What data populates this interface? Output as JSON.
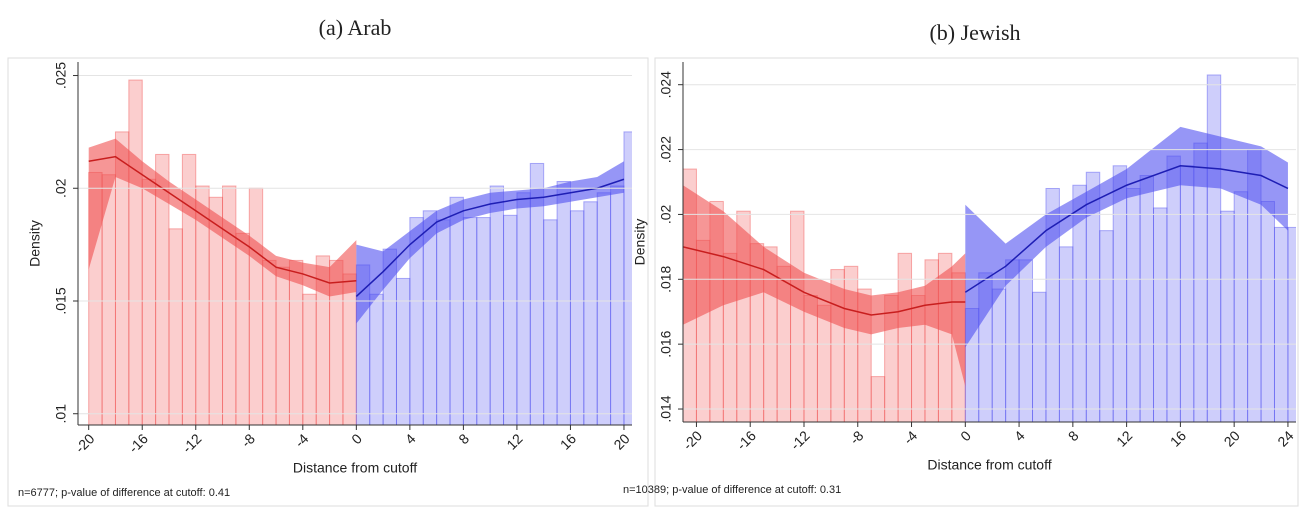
{
  "chart_data": [
    {
      "type": "histogram",
      "title": "(a) Arab",
      "xlabel": "Distance from cutoff",
      "ylabel": "Density",
      "note": "n=6777; p-value of difference at cutoff: 0.41",
      "grid": true,
      "xlim": [
        -20.8,
        20.6
      ],
      "ylim": [
        0.0095,
        0.0256
      ],
      "xticks": [
        -20,
        -16,
        -12,
        -8,
        -4,
        0,
        4,
        8,
        12,
        16,
        20
      ],
      "yticks": [
        {
          "value": 0.01,
          "label": ".01"
        },
        {
          "value": 0.015,
          "label": ".015"
        },
        {
          "value": 0.02,
          "label": ".02"
        },
        {
          "value": 0.025,
          "label": ".025"
        }
      ],
      "series": [
        {
          "color": "#f05050",
          "bins": [
            -20,
            -19,
            -18,
            -17,
            -16,
            -15,
            -14,
            -13,
            -12,
            -11,
            -10,
            -9,
            -8,
            -7,
            -6,
            -5,
            -4,
            -3,
            -2,
            -1,
            0
          ],
          "values": [
            0.0207,
            0.0206,
            0.0225,
            0.0248,
            0.0204,
            0.0215,
            0.0182,
            0.0215,
            0.0201,
            0.0196,
            0.0201,
            0.018,
            0.02,
            0.0168,
            0.0165,
            0.0168,
            0.0153,
            0.017,
            0.0168,
            0.0162
          ],
          "fit": {
            "x": [
              -20,
              -18,
              -16,
              -14,
              -12,
              -10,
              -8,
              -6,
              -4,
              -2,
              0
            ],
            "y": [
              0.0212,
              0.0214,
              0.0206,
              0.0198,
              0.019,
              0.0182,
              0.0174,
              0.0165,
              0.0162,
              0.0158,
              0.0159
            ],
            "lower": [
              0.0164,
              0.0205,
              0.02,
              0.0193,
              0.0186,
              0.0178,
              0.017,
              0.0161,
              0.0157,
              0.0152,
              0.0154
            ],
            "upper": [
              0.0218,
              0.0222,
              0.0212,
              0.0203,
              0.0195,
              0.0187,
              0.0179,
              0.017,
              0.0167,
              0.0165,
              0.0177
            ]
          }
        },
        {
          "color": "#5050f0",
          "bins": [
            0,
            1,
            2,
            3,
            4,
            5,
            6,
            7,
            8,
            9,
            10,
            11,
            12,
            13,
            14,
            15,
            16,
            17,
            18,
            19,
            20,
            21
          ],
          "values": [
            0.0166,
            0.0153,
            0.0173,
            0.016,
            0.0187,
            0.019,
            0.0186,
            0.0196,
            0.0187,
            0.0187,
            0.0201,
            0.0188,
            0.0198,
            0.0211,
            0.0186,
            0.0203,
            0.019,
            0.0194,
            0.0198,
            0.0201,
            0.0225
          ],
          "fit": {
            "x": [
              0,
              2,
              4,
              6,
              8,
              10,
              12,
              14,
              16,
              18,
              20
            ],
            "y": [
              0.0152,
              0.0163,
              0.0175,
              0.0185,
              0.019,
              0.0193,
              0.0195,
              0.0196,
              0.0198,
              0.02,
              0.0204
            ],
            "lower": [
              0.014,
              0.0155,
              0.0169,
              0.018,
              0.0186,
              0.0189,
              0.0191,
              0.0192,
              0.0194,
              0.0196,
              0.0198
            ],
            "upper": [
              0.0175,
              0.0172,
              0.0181,
              0.019,
              0.0195,
              0.0198,
              0.0199,
              0.02,
              0.0203,
              0.0205,
              0.0212
            ]
          }
        }
      ]
    },
    {
      "type": "histogram",
      "title": "(b) Jewish",
      "xlabel": "Distance from cutoff",
      "ylabel": "Density",
      "note": "n=10389; p-value of difference at cutoff: 0.31",
      "grid": true,
      "xlim": [
        -21,
        24.6
      ],
      "ylim": [
        0.0136,
        0.0247
      ],
      "xticks": [
        -20,
        -16,
        -12,
        -8,
        -4,
        0,
        4,
        8,
        12,
        16,
        20,
        24
      ],
      "yticks": [
        {
          "value": 0.014,
          "label": ".014"
        },
        {
          "value": 0.016,
          "label": ".016"
        },
        {
          "value": 0.018,
          "label": ".018"
        },
        {
          "value": 0.02,
          "label": ".02"
        },
        {
          "value": 0.022,
          "label": ".022"
        },
        {
          "value": 0.024,
          "label": ".024"
        }
      ],
      "series": [
        {
          "color": "#f05050",
          "bins": [
            -21,
            -20,
            -19,
            -18,
            -17,
            -16,
            -15,
            -14,
            -13,
            -12,
            -11,
            -10,
            -9,
            -8,
            -7,
            -6,
            -5,
            -4,
            -3,
            -2,
            -1,
            0
          ],
          "values": [
            0.0214,
            0.0192,
            0.0204,
            0.0188,
            0.0201,
            0.0191,
            0.019,
            0.0184,
            0.0201,
            0.0175,
            0.0172,
            0.0183,
            0.0184,
            0.0177,
            0.015,
            0.0175,
            0.0188,
            0.0175,
            0.0186,
            0.0188,
            0.0182
          ],
          "fit": {
            "x": [
              -21,
              -18,
              -15,
              -12,
              -9,
              -7,
              -5,
              -3,
              -1,
              0
            ],
            "y": [
              0.019,
              0.0187,
              0.0183,
              0.0176,
              0.0171,
              0.0169,
              0.017,
              0.0172,
              0.0173,
              0.0173
            ],
            "lower": [
              0.0166,
              0.0172,
              0.0176,
              0.017,
              0.0165,
              0.0163,
              0.0165,
              0.0166,
              0.0163,
              0.0147
            ],
            "upper": [
              0.0209,
              0.0201,
              0.019,
              0.0182,
              0.0177,
              0.0175,
              0.0176,
              0.0178,
              0.0184,
              0.0188
            ]
          }
        },
        {
          "color": "#5050f0",
          "bins": [
            0,
            1,
            2,
            3,
            4,
            5,
            6,
            7,
            8,
            9,
            10,
            11,
            12,
            13,
            14,
            15,
            16,
            17,
            18,
            19,
            20,
            21,
            22,
            23,
            24,
            25
          ],
          "values": [
            0.0171,
            0.0182,
            0.0177,
            0.0186,
            0.0186,
            0.0176,
            0.0208,
            0.019,
            0.0209,
            0.0213,
            0.0195,
            0.0215,
            0.0208,
            0.0212,
            0.0202,
            0.0218,
            0.0215,
            0.0222,
            0.0243,
            0.0201,
            0.0207,
            0.022,
            0.0204,
            0.0196,
            0.0196
          ],
          "fit": {
            "x": [
              0,
              3,
              6,
              9,
              12,
              16,
              19,
              22,
              24
            ],
            "y": [
              0.0176,
              0.0184,
              0.0195,
              0.0203,
              0.0209,
              0.0215,
              0.0214,
              0.0212,
              0.0208
            ],
            "lower": [
              0.0159,
              0.0178,
              0.019,
              0.0199,
              0.0205,
              0.0209,
              0.0208,
              0.0203,
              0.0195
            ],
            "upper": [
              0.0203,
              0.0191,
              0.02,
              0.0207,
              0.0214,
              0.0227,
              0.0224,
              0.0221,
              0.0216
            ]
          }
        }
      ]
    }
  ]
}
